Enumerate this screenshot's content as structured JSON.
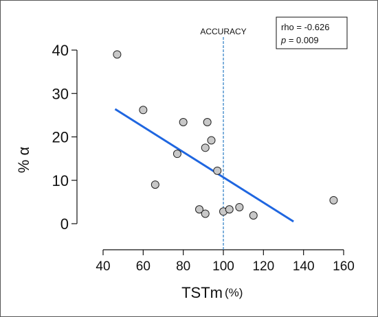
{
  "chart_data": {
    "type": "scatter",
    "xlabel": "TSTm",
    "xlabel_unit": "(%)",
    "ylabel": "% α",
    "xlim": [
      40,
      160
    ],
    "ylim": [
      0,
      40
    ],
    "x_ticks": [
      40,
      60,
      80,
      100,
      120,
      140,
      160
    ],
    "y_ticks": [
      0,
      10,
      20,
      30,
      40
    ],
    "points": [
      {
        "x": 47,
        "y": 39
      },
      {
        "x": 60,
        "y": 26.2
      },
      {
        "x": 80,
        "y": 23.4
      },
      {
        "x": 92,
        "y": 23.4
      },
      {
        "x": 94,
        "y": 19.2
      },
      {
        "x": 91,
        "y": 17.5
      },
      {
        "x": 77,
        "y": 16.1
      },
      {
        "x": 97,
        "y": 12.2
      },
      {
        "x": 66,
        "y": 9
      },
      {
        "x": 88,
        "y": 3.3
      },
      {
        "x": 91,
        "y": 2.3
      },
      {
        "x": 100,
        "y": 2.8
      },
      {
        "x": 103,
        "y": 3.3
      },
      {
        "x": 108,
        "y": 3.8
      },
      {
        "x": 115,
        "y": 1.9
      },
      {
        "x": 155,
        "y": 5.4
      }
    ],
    "trend_line": {
      "x": [
        46,
        135
      ],
      "y": [
        26.4,
        0.5
      ],
      "color": "#1f66e0"
    },
    "reference_line": {
      "x": 100,
      "label": "ACCURACY",
      "color": "#3a86c8"
    },
    "annotation": {
      "line1": "rho = -0.626",
      "line2_prefix": "p",
      "line2_rest": " = 0.009"
    },
    "marker_color": "#c8c8c8",
    "grid": false,
    "legend": "none"
  }
}
